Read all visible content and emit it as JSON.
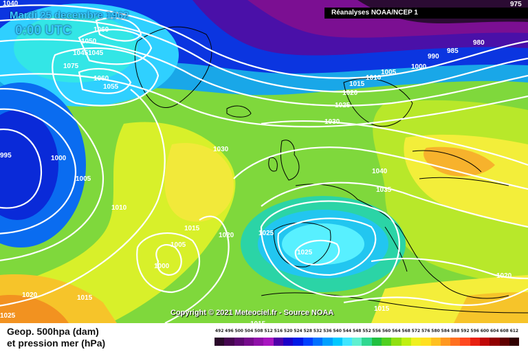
{
  "header": {
    "date_line": "Mardi 25 decembre 1962",
    "time_line": "0:00 UTC",
    "source": "Réanalyses NOAA/NCEP 1"
  },
  "footer": {
    "copyright": "Copyright © 2021 Meteociel.fr - Source NOAA",
    "legend_line1": "Geop. 500hpa (dam)",
    "legend_line2": "et pression mer (hPa)"
  },
  "scale": {
    "ticks": [
      "492",
      "496",
      "500",
      "504",
      "508",
      "512",
      "516",
      "520",
      "524",
      "528",
      "532",
      "536",
      "540",
      "544",
      "548",
      "552",
      "556",
      "560",
      "564",
      "568",
      "572",
      "576",
      "580",
      "584",
      "588",
      "592",
      "596",
      "600",
      "604",
      "608",
      "612"
    ],
    "colors": [
      "#2a0a2a",
      "#45064f",
      "#5c0870",
      "#760b8c",
      "#8f10a8",
      "#a815c0",
      "#4e00a8",
      "#1b00c8",
      "#0018e6",
      "#0040ff",
      "#0070ff",
      "#00a0ff",
      "#00c8ff",
      "#40e6ff",
      "#60f0d0",
      "#30d890",
      "#20c040",
      "#50d020",
      "#90e010",
      "#c0f010",
      "#f0f020",
      "#ffe020",
      "#ffc020",
      "#ff9820",
      "#ff7020",
      "#ff4820",
      "#e82010",
      "#c00808",
      "#900000",
      "#600000",
      "#300000"
    ]
  },
  "isobar_labels": {
    "l1040a": "1040",
    "l1060a": "1060",
    "l1050": "1050",
    "l1045a": "1045",
    "l1045b": "1045",
    "l1075": "1075",
    "l1060b": "1060",
    "l1055": "1055",
    "l995": "995",
    "l1000a": "1000",
    "l1005a": "1005",
    "l1010a": "1010",
    "l1030a": "1030",
    "l1015a": "1015",
    "l1020a": "1020",
    "l1005b": "1005",
    "l1000b": "1000",
    "l1025a": "1025",
    "l1025b": "1025",
    "l1020b": "1020",
    "l1015b": "1015",
    "l1025c": "1025",
    "l1015c": "1015",
    "l1015d": "1015",
    "l1020c": "1020",
    "l1025d": "1025",
    "l1030b": "1030",
    "l1035": "1035",
    "l1040b": "1040",
    "l1010b": "1010",
    "l1015e": "1015",
    "l1020d": "1020",
    "l1005c": "1005",
    "l1000c": "1000",
    "l990": "990",
    "l985": "985",
    "l980": "980",
    "l975": "975"
  },
  "colors": {
    "ocean_deep_purple": "#3a0a45",
    "low_blue": "#0a2ad8",
    "mid_green": "#6fd24a",
    "ridge_yellow": "#f4ee3a",
    "ridge_orange": "#f7a21f",
    "cyan_low": "#38e0ff",
    "contour": "#ffffff",
    "coast": "#000000"
  }
}
